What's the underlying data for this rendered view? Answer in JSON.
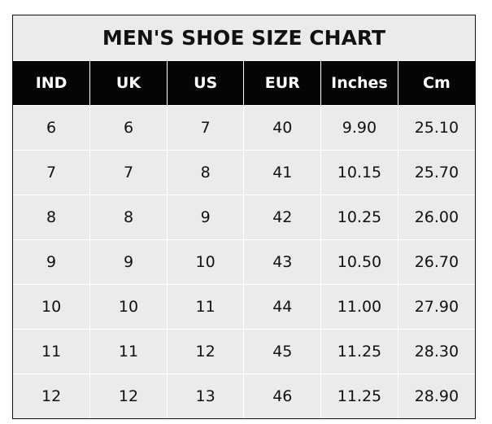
{
  "title": "MEN'S SHOE SIZE CHART",
  "headers": [
    "IND",
    "UK",
    "US",
    "EUR",
    "Inches",
    "Cm"
  ],
  "rows": [
    [
      "6",
      "6",
      "7",
      "40",
      "9.90",
      "25.10"
    ],
    [
      "7",
      "7",
      "8",
      "41",
      "10.15",
      "25.70"
    ],
    [
      "8",
      "8",
      "9",
      "42",
      "10.25",
      "26.00"
    ],
    [
      "9",
      "9",
      "10",
      "43",
      "10.50",
      "26.70"
    ],
    [
      "10",
      "10",
      "11",
      "44",
      "11.00",
      "27.90"
    ],
    [
      "11",
      "11",
      "12",
      "45",
      "11.25",
      "28.30"
    ],
    [
      "12",
      "12",
      "13",
      "46",
      "11.25",
      "28.90"
    ]
  ],
  "colors": {
    "header_bg": "#050505",
    "cell_bg": "#ebebeb"
  }
}
